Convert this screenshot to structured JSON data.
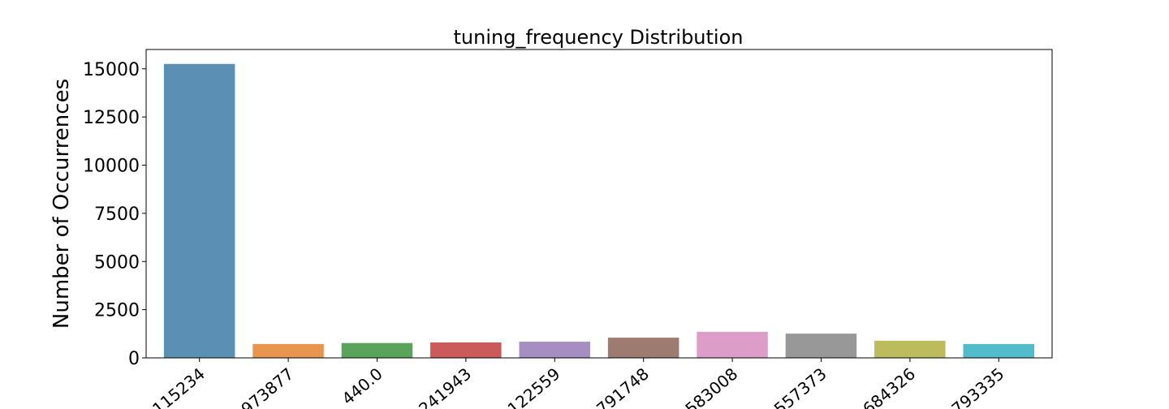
{
  "chart_data": {
    "type": "bar",
    "title": "tuning_frequency Distribution",
    "xlabel": "",
    "ylabel": "Number of Occurrences",
    "ylim": [
      0,
      16000
    ],
    "yticks": [
      0,
      2500,
      5000,
      7500,
      10000,
      12500,
      15000
    ],
    "categories": [
      "115234",
      "973877",
      "440.0",
      "241943",
      "122559",
      "791748",
      "583008",
      "557373",
      "684326",
      "793335"
    ],
    "values": [
      15250,
      720,
      770,
      800,
      840,
      1050,
      1350,
      1260,
      890,
      720
    ],
    "colors": [
      "#5b8fb4",
      "#e8964f",
      "#5aa35a",
      "#cb5a5a",
      "#a68dc2",
      "#9d7b70",
      "#dd9dc9",
      "#989898",
      "#bcbb5e",
      "#52bccb"
    ],
    "grid": false,
    "legend": "none"
  }
}
